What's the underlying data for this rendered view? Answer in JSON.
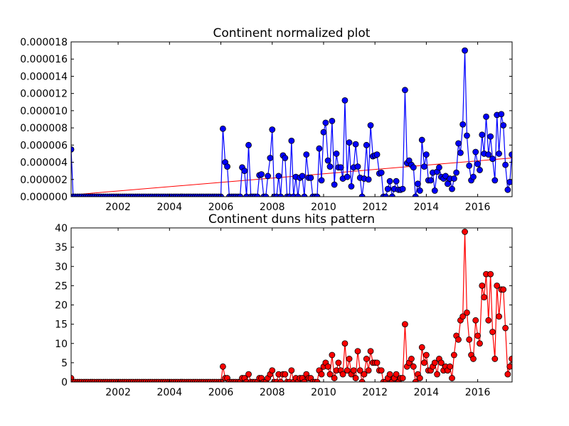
{
  "chart_data": [
    {
      "type": "line",
      "title": "Continent normalized plot",
      "color": "#0000ff",
      "x": [
        2000.17,
        2000.25,
        2000.33,
        2000.42,
        2000.5,
        2000.58,
        2000.67,
        2000.75,
        2000.83,
        2000.92,
        2001,
        2001.08,
        2001.17,
        2001.25,
        2001.33,
        2001.42,
        2001.5,
        2001.58,
        2001.67,
        2001.75,
        2001.83,
        2001.92,
        2002,
        2002.08,
        2002.17,
        2002.25,
        2002.33,
        2002.42,
        2002.5,
        2002.58,
        2002.67,
        2002.75,
        2002.83,
        2002.92,
        2003,
        2003.08,
        2003.17,
        2003.25,
        2003.33,
        2003.42,
        2003.5,
        2003.58,
        2003.67,
        2003.75,
        2003.83,
        2003.92,
        2004,
        2004.08,
        2004.17,
        2004.25,
        2004.33,
        2004.42,
        2004.5,
        2004.58,
        2004.67,
        2004.75,
        2004.83,
        2004.92,
        2005,
        2005.08,
        2005.17,
        2005.25,
        2005.33,
        2005.42,
        2005.5,
        2005.58,
        2005.67,
        2005.75,
        2005.83,
        2005.92,
        2006,
        2006.08,
        2006.17,
        2006.25,
        2006.33,
        2006.42,
        2006.5,
        2006.58,
        2006.67,
        2006.75,
        2006.83,
        2006.92,
        2007,
        2007.08,
        2007.17,
        2007.25,
        2007.33,
        2007.42,
        2007.5,
        2007.58,
        2007.67,
        2007.75,
        2007.83,
        2007.92,
        2008,
        2008.08,
        2008.17,
        2008.25,
        2008.33,
        2008.42,
        2008.5,
        2008.58,
        2008.67,
        2008.75,
        2008.83,
        2008.92,
        2009,
        2009.08,
        2009.17,
        2009.25,
        2009.33,
        2009.42,
        2009.5,
        2009.58,
        2009.67,
        2009.75,
        2009.83,
        2009.92,
        2010,
        2010.08,
        2010.17,
        2010.25,
        2010.33,
        2010.42,
        2010.5,
        2010.58,
        2010.67,
        2010.75,
        2010.83,
        2010.92,
        2011,
        2011.08,
        2011.17,
        2011.25,
        2011.33,
        2011.42,
        2011.5,
        2011.58,
        2011.67,
        2011.75,
        2011.83,
        2011.92,
        2012,
        2012.08,
        2012.17,
        2012.25,
        2012.33,
        2012.42,
        2012.5,
        2012.58,
        2012.67,
        2012.75,
        2012.83,
        2012.92,
        2013,
        2013.08,
        2013.17,
        2013.25,
        2013.33,
        2013.42,
        2013.5,
        2013.58,
        2013.67,
        2013.75,
        2013.83,
        2013.92,
        2014,
        2014.08,
        2014.17,
        2014.25,
        2014.33,
        2014.42,
        2014.5,
        2014.58,
        2014.67,
        2014.75,
        2014.83,
        2014.92,
        2015,
        2015.08,
        2015.17,
        2015.25,
        2015.33,
        2015.42,
        2015.5,
        2015.58,
        2015.67,
        2015.75,
        2015.83,
        2015.92,
        2016,
        2016.08,
        2016.17,
        2016.25,
        2016.33,
        2016.42,
        2016.5,
        2016.58,
        2016.67,
        2016.75,
        2016.83,
        2016.92,
        2017,
        2017.08,
        2017.17,
        2017.25,
        2017.33
      ],
      "values": [
        5.5e-06,
        0,
        0,
        0,
        0,
        0,
        0,
        0,
        0,
        0,
        0,
        0,
        0,
        0,
        0,
        0,
        0,
        0,
        0,
        0,
        0,
        0,
        0,
        0,
        0,
        0,
        0,
        0,
        0,
        0,
        0,
        0,
        0,
        0,
        0,
        0,
        0,
        0,
        0,
        0,
        0,
        0,
        0,
        0,
        0,
        0,
        0,
        0,
        0,
        0,
        0,
        0,
        0,
        0,
        0,
        0,
        0,
        0,
        0,
        0,
        0,
        0,
        0,
        0,
        0,
        0,
        0,
        0,
        0,
        0,
        0,
        7.9e-06,
        4e-06,
        3.5e-06,
        0,
        0,
        0,
        0,
        0,
        0,
        3.4e-06,
        3e-06,
        0,
        6e-06,
        0,
        0,
        0,
        0,
        2.5e-06,
        2.6e-06,
        0,
        0,
        2.4e-06,
        4.5e-06,
        7.8e-06,
        0,
        0,
        2.4e-06,
        0,
        4.8e-06,
        4.5e-06,
        0,
        0,
        6.5e-06,
        0,
        2.3e-06,
        0,
        2.2e-06,
        2.4e-06,
        0,
        4.9e-06,
        2.2e-06,
        2.2e-06,
        0,
        0,
        0,
        5.6e-06,
        1.9e-06,
        7.5e-06,
        8.6e-06,
        4.2e-06,
        3.5e-06,
        8.8e-06,
        1.4e-06,
        5e-06,
        3.4e-06,
        3.4e-06,
        2.1e-06,
        1.12e-05,
        2.3e-06,
        6.3e-06,
        1.2e-06,
        3.4e-06,
        6.1e-06,
        3.5e-06,
        2.2e-06,
        0,
        2.1e-06,
        6e-06,
        2e-06,
        8.3e-06,
        4.7e-06,
        4.8e-06,
        4.9e-06,
        2.7e-06,
        2.8e-06,
        0,
        0,
        9e-07,
        1.8e-06,
        0,
        9e-07,
        1.8e-06,
        8e-07,
        8e-07,
        9e-07,
        1.24e-05,
        3.9e-06,
        4.2e-06,
        3.7e-06,
        3.4e-06,
        0,
        1.5e-06,
        7e-07,
        6.6e-06,
        3.5e-06,
        4.9e-06,
        1.9e-06,
        1.9e-06,
        2.8e-06,
        7e-07,
        2.9e-06,
        3.4e-06,
        2.3e-06,
        2.1e-06,
        2.4e-06,
        1.5e-06,
        2.1e-06,
        9e-07,
        2.1e-06,
        2.8e-06,
        6.2e-06,
        5.1e-06,
        8.4e-06,
        1.7e-05,
        7.1e-06,
        3.6e-06,
        1.9e-06,
        2.3e-06,
        5.2e-06,
        3.8e-06,
        3.1e-06,
        7.2e-06,
        5e-06,
        9.3e-06,
        4.9e-06,
        7e-06,
        4.4e-06,
        1.9e-06,
        9.5e-06,
        5e-06,
        9.6e-06,
        8.3e-06,
        3.7e-06,
        8e-07,
        1.7e-06,
        4.9e-06
      ],
      "trend": {
        "x": [
          2000.17,
          2017.34
        ],
        "values": [
          2e-07,
          4.5e-06
        ],
        "color": "#ff0000"
      },
      "xlim": [
        2000.17,
        2017.34
      ],
      "ylim": [
        0,
        1.8e-05
      ],
      "xticks": [
        2002,
        2004,
        2006,
        2008,
        2010,
        2012,
        2014,
        2016
      ],
      "yticks": [
        {
          "value": 0,
          "label": "0.000000"
        },
        {
          "value": 2e-06,
          "label": "0.000002"
        },
        {
          "value": 4e-06,
          "label": "0.000004"
        },
        {
          "value": 6e-06,
          "label": "0.000006"
        },
        {
          "value": 8e-06,
          "label": "0.000008"
        },
        {
          "value": 1e-05,
          "label": "0.000010"
        },
        {
          "value": 1.2e-05,
          "label": "0.000012"
        },
        {
          "value": 1.4e-05,
          "label": "0.000014"
        },
        {
          "value": 1.6e-05,
          "label": "0.000016"
        },
        {
          "value": 1.8e-05,
          "label": "0.000018"
        }
      ]
    },
    {
      "type": "line",
      "title": "Continent duns hits pattern",
      "color": "#ff0000",
      "x": [
        2000.17,
        2000.25,
        2000.33,
        2000.42,
        2000.5,
        2000.58,
        2000.67,
        2000.75,
        2000.83,
        2000.92,
        2001,
        2001.08,
        2001.17,
        2001.25,
        2001.33,
        2001.42,
        2001.5,
        2001.58,
        2001.67,
        2001.75,
        2001.83,
        2001.92,
        2002,
        2002.08,
        2002.17,
        2002.25,
        2002.33,
        2002.42,
        2002.5,
        2002.58,
        2002.67,
        2002.75,
        2002.83,
        2002.92,
        2003,
        2003.08,
        2003.17,
        2003.25,
        2003.33,
        2003.42,
        2003.5,
        2003.58,
        2003.67,
        2003.75,
        2003.83,
        2003.92,
        2004,
        2004.08,
        2004.17,
        2004.25,
        2004.33,
        2004.42,
        2004.5,
        2004.58,
        2004.67,
        2004.75,
        2004.83,
        2004.92,
        2005,
        2005.08,
        2005.17,
        2005.25,
        2005.33,
        2005.42,
        2005.5,
        2005.58,
        2005.67,
        2005.75,
        2005.83,
        2005.92,
        2006,
        2006.08,
        2006.17,
        2006.25,
        2006.33,
        2006.42,
        2006.5,
        2006.58,
        2006.67,
        2006.75,
        2006.83,
        2006.92,
        2007,
        2007.08,
        2007.17,
        2007.25,
        2007.33,
        2007.42,
        2007.5,
        2007.58,
        2007.67,
        2007.75,
        2007.83,
        2007.92,
        2008,
        2008.08,
        2008.17,
        2008.25,
        2008.33,
        2008.42,
        2008.5,
        2008.58,
        2008.67,
        2008.75,
        2008.83,
        2008.92,
        2009,
        2009.08,
        2009.17,
        2009.25,
        2009.33,
        2009.42,
        2009.5,
        2009.58,
        2009.67,
        2009.75,
        2009.83,
        2009.92,
        2010,
        2010.08,
        2010.17,
        2010.25,
        2010.33,
        2010.42,
        2010.5,
        2010.58,
        2010.67,
        2010.75,
        2010.83,
        2010.92,
        2011,
        2011.08,
        2011.17,
        2011.25,
        2011.33,
        2011.42,
        2011.5,
        2011.58,
        2011.67,
        2011.75,
        2011.83,
        2011.92,
        2012,
        2012.08,
        2012.17,
        2012.25,
        2012.33,
        2012.42,
        2012.5,
        2012.58,
        2012.67,
        2012.75,
        2012.83,
        2012.92,
        2013,
        2013.08,
        2013.17,
        2013.25,
        2013.33,
        2013.42,
        2013.5,
        2013.58,
        2013.67,
        2013.75,
        2013.83,
        2013.92,
        2014,
        2014.08,
        2014.17,
        2014.25,
        2014.33,
        2014.42,
        2014.5,
        2014.58,
        2014.67,
        2014.75,
        2014.83,
        2014.92,
        2015,
        2015.08,
        2015.17,
        2015.25,
        2015.33,
        2015.42,
        2015.5,
        2015.58,
        2015.67,
        2015.75,
        2015.83,
        2015.92,
        2016,
        2016.08,
        2016.17,
        2016.25,
        2016.33,
        2016.42,
        2016.5,
        2016.58,
        2016.67,
        2016.75,
        2016.83,
        2016.92,
        2017,
        2017.08,
        2017.17,
        2017.25,
        2017.33
      ],
      "values": [
        1,
        0,
        0,
        0,
        0,
        0,
        0,
        0,
        0,
        0,
        0,
        0,
        0,
        0,
        0,
        0,
        0,
        0,
        0,
        0,
        0,
        0,
        0,
        0,
        0,
        0,
        0,
        0,
        0,
        0,
        0,
        0,
        0,
        0,
        0,
        0,
        0,
        0,
        0,
        0,
        0,
        0,
        0,
        0,
        0,
        0,
        0,
        0,
        0,
        0,
        0,
        0,
        0,
        0,
        0,
        0,
        0,
        0,
        0,
        0,
        0,
        0,
        0,
        0,
        0,
        0,
        0,
        0,
        0,
        0,
        0,
        4,
        1,
        1,
        0,
        0,
        0,
        0,
        0,
        0,
        1,
        1,
        0,
        2,
        0,
        0,
        0,
        0,
        1,
        1,
        0,
        0,
        1,
        2,
        3,
        0,
        0,
        2,
        0,
        2,
        2,
        0,
        0,
        3,
        0,
        1,
        0,
        1,
        1,
        0,
        2,
        1,
        1,
        0,
        0,
        0,
        3,
        2,
        4,
        5,
        4,
        2,
        7,
        1,
        3,
        5,
        3,
        2,
        10,
        3,
        6,
        2,
        3,
        1,
        8,
        3,
        0,
        2,
        6,
        3,
        8,
        5,
        5,
        5,
        3,
        3,
        0,
        0,
        1,
        2,
        0,
        1,
        2,
        0,
        1,
        1,
        15,
        4,
        5,
        6,
        4,
        0,
        2,
        1,
        9,
        5,
        7,
        3,
        3,
        4,
        5,
        2,
        6,
        5,
        3,
        4,
        3,
        4,
        1,
        7,
        12,
        11,
        16,
        17,
        39,
        18,
        11,
        7,
        6,
        16,
        12,
        10,
        25,
        22,
        28,
        16,
        28,
        13,
        6,
        25,
        17,
        24,
        24,
        14,
        2,
        4,
        6
      ],
      "xlim": [
        2000.17,
        2017.34
      ],
      "ylim": [
        0,
        40
      ],
      "xticks": [
        2002,
        2004,
        2006,
        2008,
        2010,
        2012,
        2014,
        2016
      ],
      "yticks": [
        0,
        5,
        10,
        15,
        20,
        25,
        30,
        35,
        40
      ]
    }
  ]
}
